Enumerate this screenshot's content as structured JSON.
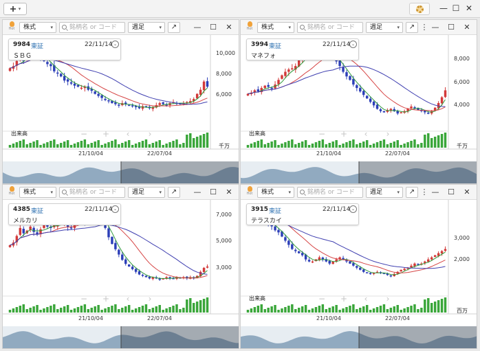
{
  "toolbar": {
    "add_icon": "plus-icon",
    "add_chevron": "▾",
    "settings_icon": "gear-icon",
    "window_controls": [
      "—",
      "☐",
      "✕"
    ]
  },
  "panel_header": {
    "hot_label": "Hot",
    "type_value": "株式",
    "search_placeholder": "銘柄名 or コード",
    "period_value": "週足",
    "popout_icon": "↗",
    "menu_icon": "⋮",
    "minimize_icon": "—",
    "maximize_icon": "☐",
    "close_icon": "✕",
    "dropdown_icon": "▾",
    "chevron_icon": "⌄"
  },
  "colors": {
    "up": "#d33a3a",
    "down": "#2c3fb8",
    "ma_short": "#2f9a3a",
    "ma_mid": "#d64545",
    "ma_long": "#3f3fb0",
    "volume": "#3aa63a",
    "minimap": "#7c98b3"
  },
  "nav": [
    "−",
    "+",
    "‹",
    "›"
  ],
  "panels": [
    {
      "code": "9984",
      "market": "東証",
      "date": "22/11/14",
      "name": "ＳＢＧ",
      "ylabels": [
        "10,000",
        "8,000",
        "6,000"
      ],
      "ylabel_values": [
        10000,
        8000,
        6000
      ],
      "yrange": [
        3400,
        11300
      ],
      "xlabels": [
        "21/10/04",
        "22/07/04"
      ],
      "volume_title": "出来高",
      "volume_unit": "千万",
      "chart_data": {
        "type": "candlestick",
        "weekly_close": [
          8600,
          8800,
          9300,
          9500,
          9400,
          9900,
          10200,
          10400,
          10100,
          9700,
          9300,
          9000,
          8800,
          8300,
          8100,
          7800,
          7400,
          7300,
          7100,
          6900,
          6800,
          6700,
          6800,
          6500,
          6400,
          6100,
          5900,
          5700,
          5500,
          5400,
          5200,
          5100,
          5000,
          5200,
          5100,
          5000,
          4900,
          4800,
          4700,
          4900,
          4800,
          4700,
          4800,
          5000,
          5200,
          5100,
          5000,
          5200,
          5300,
          5200,
          5100,
          5200,
          5300,
          5400,
          5600,
          6100,
          6500,
          7300,
          6800
        ]
      }
    },
    {
      "code": "3994",
      "market": "東証",
      "date": "22/11/14",
      "name": "マネフォ",
      "ylabels": [
        "8,000",
        "6,000",
        "4,000"
      ],
      "ylabel_values": [
        8000,
        6000,
        4000
      ],
      "yrange": [
        2600,
        9600
      ],
      "xlabels": [
        "21/10/04",
        "22/07/04"
      ],
      "volume_title": "出来高",
      "volume_unit": "千万",
      "chart_data": {
        "type": "candlestick",
        "weekly_close": [
          5000,
          5100,
          5300,
          5200,
          5500,
          5700,
          5600,
          5500,
          5800,
          6200,
          6600,
          6900,
          7100,
          7200,
          7400,
          7900,
          8200,
          8500,
          8300,
          8600,
          8900,
          8800,
          9000,
          8700,
          8400,
          8100,
          7800,
          7400,
          6900,
          6500,
          6200,
          5800,
          5500,
          5200,
          4900,
          4600,
          4300,
          4000,
          3700,
          3500,
          3400,
          3600,
          3700,
          3500,
          3300,
          3400,
          3500,
          3700,
          3900,
          3800,
          3600,
          3500,
          3400,
          3300,
          3500,
          3800,
          4200,
          4700,
          5300
        ]
      }
    },
    {
      "code": "4385",
      "market": "東証",
      "date": "22/11/14",
      "name": "メルカリ",
      "ylabels": [
        "7,000",
        "5,000",
        "3,000"
      ],
      "ylabel_values": [
        7000,
        5000,
        3000
      ],
      "yrange": [
        1600,
        7700
      ],
      "xlabels": [
        "21/10/04",
        "22/07/04"
      ],
      "volume_title": "",
      "volume_unit": "",
      "chart_data": {
        "type": "candlestick",
        "weekly_close": [
          4700,
          4900,
          5400,
          6000,
          5600,
          5800,
          6100,
          5700,
          5500,
          5900,
          6300,
          6100,
          6000,
          6200,
          6400,
          6300,
          6500,
          6100,
          6000,
          6400,
          6800,
          6600,
          6500,
          6700,
          7000,
          6900,
          6700,
          6500,
          6000,
          5300,
          4800,
          4400,
          4000,
          3600,
          3300,
          3100,
          2900,
          2700,
          2500,
          2400,
          2300,
          2200,
          2300,
          2200,
          2100,
          2200,
          2300,
          2200,
          2200,
          2300,
          2200,
          2300,
          2200,
          2300,
          2200,
          2400,
          2700,
          3000,
          3100
        ]
      }
    },
    {
      "code": "3915",
      "market": "東証",
      "date": "22/11/14",
      "name": "テラスカイ",
      "ylabels": [
        "3,000",
        "2,000"
      ],
      "ylabel_values": [
        3000,
        2000
      ],
      "yrange": [
        700,
        4600
      ],
      "xlabels": [
        "21/10/04",
        "22/07/04"
      ],
      "volume_title": "出来高",
      "volume_unit": "百万",
      "chart_data": {
        "type": "candlestick",
        "weekly_close": [
          4400,
          4300,
          4100,
          4000,
          3800,
          3900,
          3700,
          3600,
          3400,
          3300,
          3100,
          2900,
          2700,
          2500,
          2400,
          2300,
          2200,
          2000,
          1900,
          1900,
          2000,
          2100,
          2000,
          1900,
          1800,
          1900,
          2000,
          2100,
          2000,
          1900,
          1800,
          1700,
          1600,
          1500,
          1400,
          1350,
          1300,
          1350,
          1400,
          1350,
          1300,
          1250,
          1200,
          1300,
          1400,
          1500,
          1550,
          1600,
          1700,
          1800,
          1750,
          1800,
          1900,
          2000,
          2100,
          2200,
          2300,
          2400,
          2500
        ]
      }
    }
  ]
}
